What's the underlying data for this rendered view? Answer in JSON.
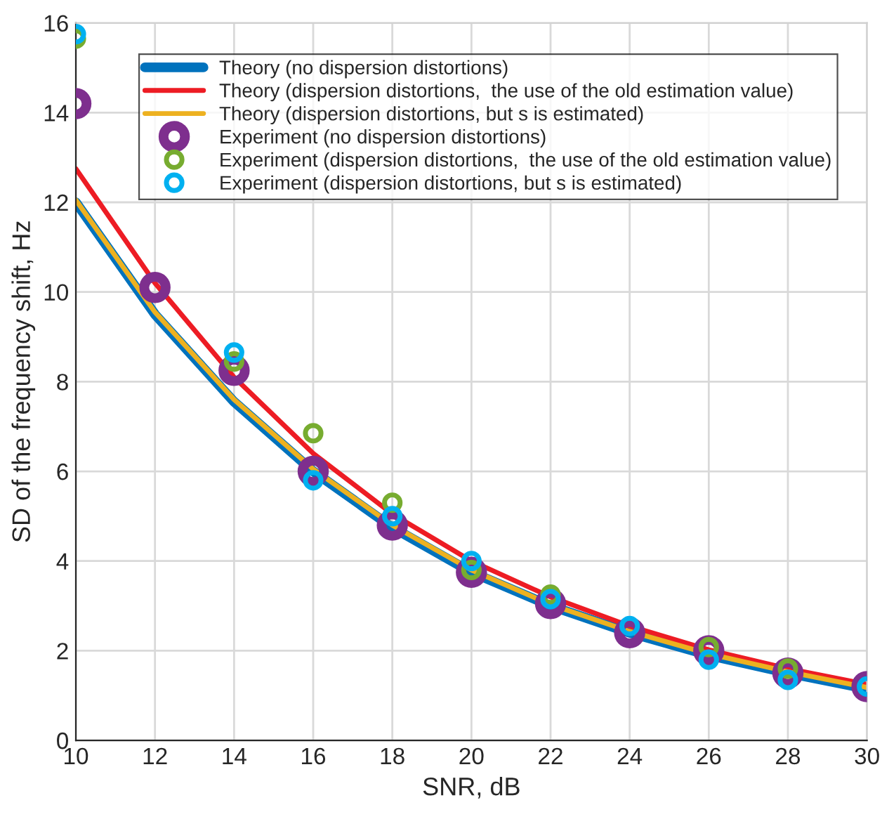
{
  "chart_data": {
    "type": "line",
    "xlabel": "SNR, dB",
    "ylabel": "SD of the frequency shift, Hz",
    "x": [
      10,
      12,
      14,
      16,
      18,
      20,
      22,
      24,
      26,
      28,
      30
    ],
    "series": [
      {
        "name": "Theory (no dispersion distortions)",
        "color": "#0072bd",
        "marker": "none",
        "values": [
          12.0,
          9.5,
          7.55,
          6.0,
          4.75,
          3.75,
          3.0,
          2.4,
          1.9,
          1.5,
          1.15
        ]
      },
      {
        "name": "Theory (dispersion distortions,  the use of the old estimation value)",
        "color": "#ed1c24",
        "marker": "none",
        "values": [
          12.75,
          10.2,
          8.1,
          6.4,
          5.05,
          4.0,
          3.2,
          2.55,
          2.02,
          1.6,
          1.25
        ]
      },
      {
        "name": "Theory (dispersion distortions, but s is estimated)",
        "color": "#edb120",
        "marker": "none",
        "values": [
          12.05,
          9.55,
          7.6,
          6.05,
          4.8,
          3.8,
          3.03,
          2.43,
          1.93,
          1.53,
          1.18
        ]
      },
      {
        "name": "Experiment (no dispersion distortions)",
        "type": "scatter",
        "color": "#7e2f8e",
        "marker": "circle",
        "values": [
          14.2,
          10.1,
          8.25,
          6.0,
          4.8,
          3.75,
          3.05,
          2.4,
          2.0,
          1.5,
          1.2
        ]
      },
      {
        "name": "Experiment (dispersion distortions,  the use of the old estimation value)",
        "type": "scatter",
        "color": "#77ac30",
        "marker": "circle",
        "values": [
          15.65,
          null,
          8.45,
          6.85,
          5.3,
          3.8,
          3.25,
          null,
          2.08,
          1.6,
          null
        ]
      },
      {
        "name": "Experiment (dispersion distortions, but s is estimated)",
        "type": "scatter",
        "color": "#00b0f0",
        "marker": "circle",
        "values": [
          15.75,
          null,
          8.65,
          5.8,
          5.0,
          4.0,
          3.15,
          2.55,
          1.8,
          1.35,
          1.2
        ]
      }
    ],
    "xlim": [
      10,
      30
    ],
    "xticks": [
      10,
      12,
      14,
      16,
      18,
      20,
      22,
      24,
      26,
      28,
      30
    ],
    "ylim": [
      0,
      16
    ],
    "yticks": [
      0,
      2,
      4,
      6,
      8,
      10,
      12,
      14,
      16
    ],
    "grid": true,
    "legend": "top right"
  }
}
